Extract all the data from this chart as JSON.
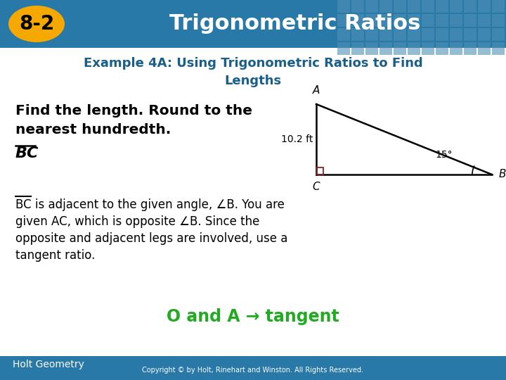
{
  "header_bg": "#2878A8",
  "header_text": "Trigonometric Ratios",
  "header_label": "8-2",
  "header_label_bg": "#F5A800",
  "subtitle_text_line1": "Example 4A: Using Trigonometric Ratios to Find",
  "subtitle_text_line2": "Lengths",
  "subtitle_color": "#1A5E8A",
  "body_bg": "#FFFFFF",
  "main_bold_line1": "Find the length. Round to the",
  "main_bold_line2": "nearest hundredth.",
  "bc_label": "BC",
  "body_lines": [
    "BC is adjacent to the given angle, ∠B. You are",
    "given AC, which is opposite ∠B. Since the",
    "opposite and adjacent legs are involved, use a",
    "tangent ratio."
  ],
  "conclusion_text": "O and A → tangent",
  "conclusion_color": "#22AA22",
  "footer_text": "Holt Geometry",
  "footer_bg": "#2878A8",
  "copyright_text": "Copyright © by Holt, Rinehart and Winston. All Rights Reserved.",
  "angle_label": "15°",
  "side_label": "10.2 ft",
  "tile_color": "#5090B8",
  "right_angle_color": "#8B2020"
}
